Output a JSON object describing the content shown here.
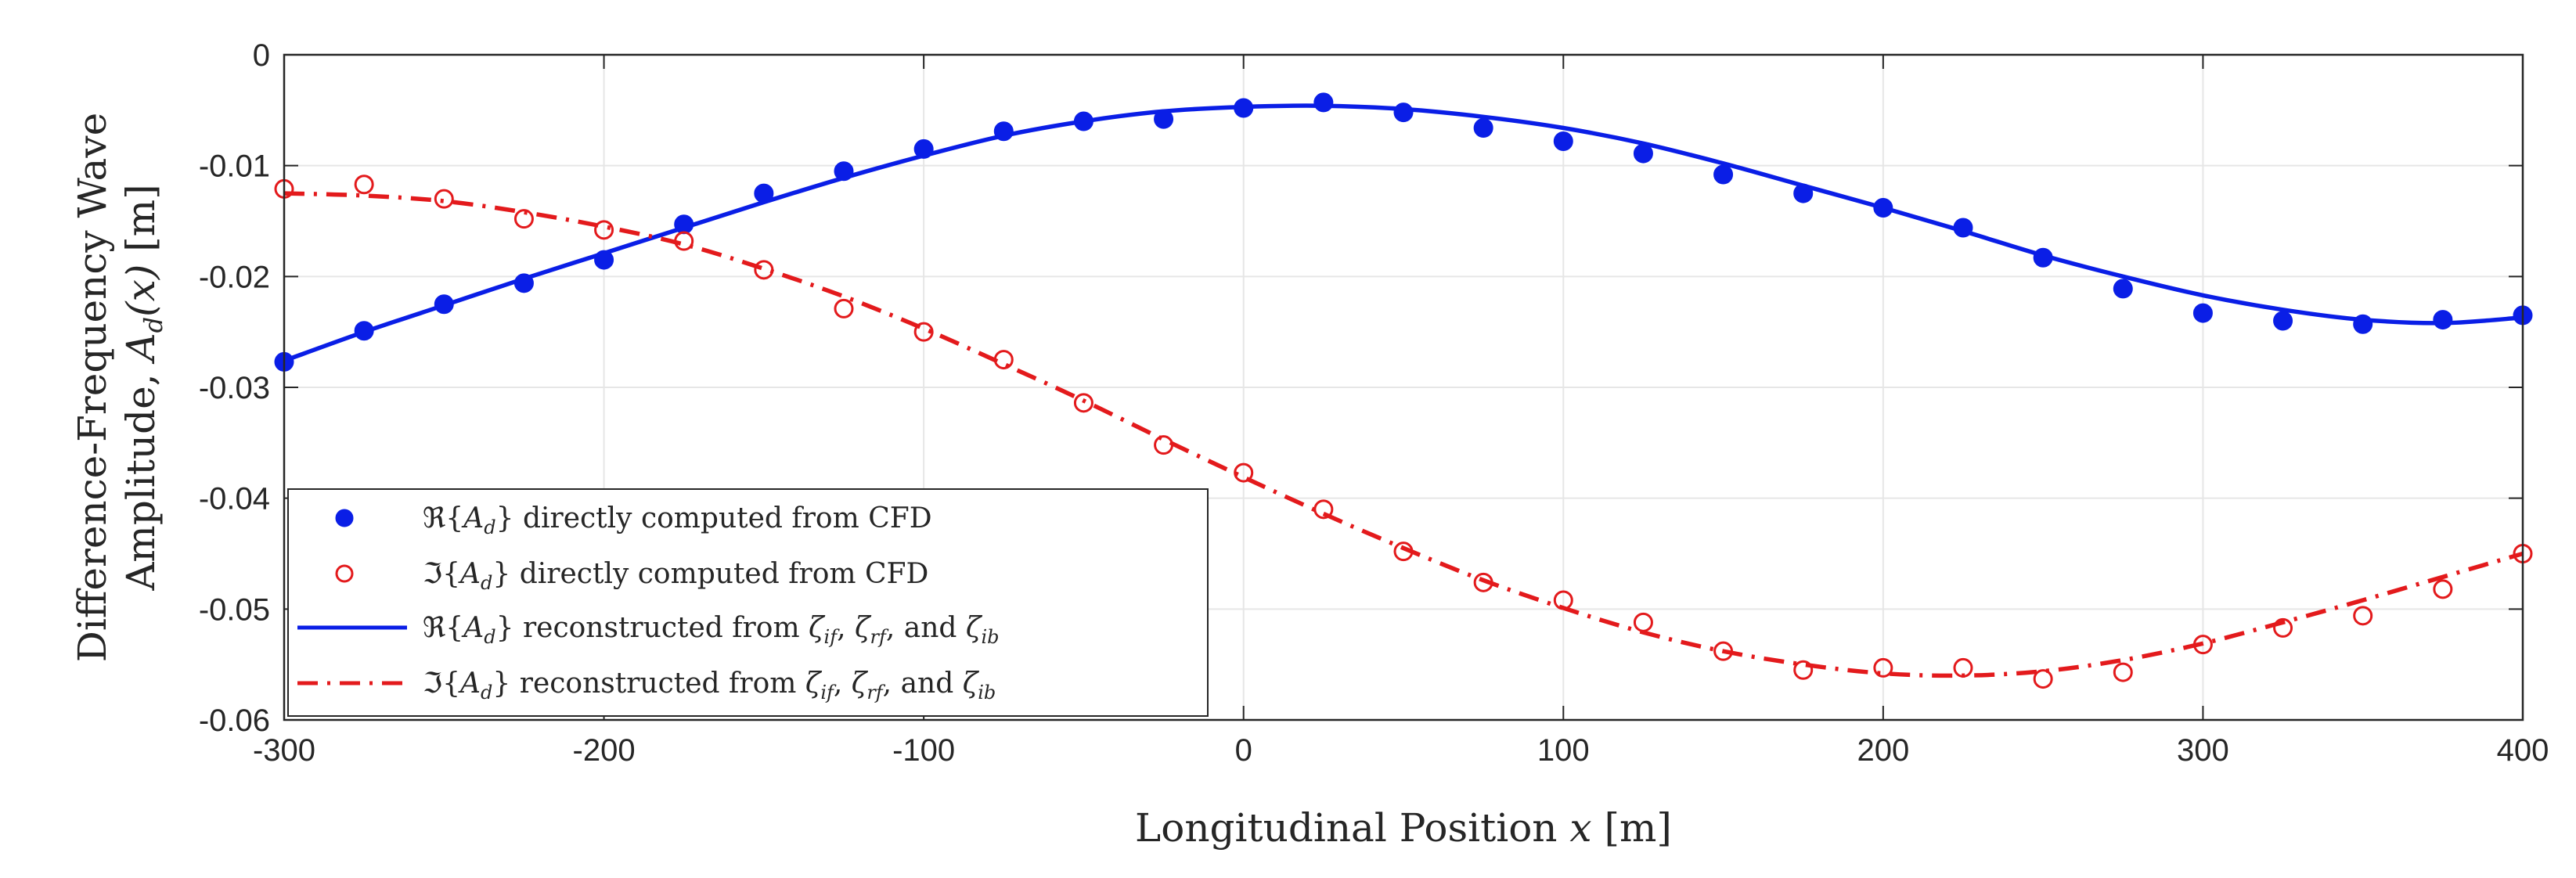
{
  "chart_data": {
    "type": "line",
    "xlabel": "Longitudinal Position x [m]",
    "ylabel_line1": "Difference-Frequency Wave",
    "ylabel_line2": "Amplitude, A_d(x) [m]",
    "xlim": [
      -300,
      400
    ],
    "ylim": [
      -0.06,
      0
    ],
    "xticks": [
      -300,
      -200,
      -100,
      0,
      100,
      200,
      300,
      400
    ],
    "xtick_labels": [
      "-300",
      "-200",
      "-100",
      "0",
      "100",
      "200",
      "300",
      "400"
    ],
    "yticks": [
      0,
      -0.01,
      -0.02,
      -0.03,
      -0.04,
      -0.05,
      -0.06
    ],
    "ytick_labels": [
      "0",
      "-0.01",
      "-0.02",
      "-0.03",
      "-0.04",
      "-0.05",
      "-0.06"
    ],
    "grid": true,
    "legend_position": "bottom-left",
    "x_points": [
      -300,
      -275,
      -250,
      -225,
      -200,
      -175,
      -150,
      -125,
      -100,
      -75,
      -50,
      -25,
      0,
      25,
      50,
      75,
      100,
      125,
      150,
      175,
      200,
      225,
      250,
      275,
      300,
      325,
      350,
      375,
      400
    ],
    "series": [
      {
        "name": "ℜ{A_d} directly computed from CFD",
        "style": "filled-markers",
        "color": "#0a1ee6",
        "values": [
          -0.0277,
          -0.0249,
          -0.0225,
          -0.0206,
          -0.0185,
          -0.0153,
          -0.0125,
          -0.0105,
          -0.0085,
          -0.0069,
          -0.006,
          -0.0058,
          -0.0048,
          -0.0043,
          -0.0052,
          -0.0066,
          -0.0078,
          -0.0089,
          -0.0108,
          -0.0125,
          -0.0138,
          -0.0156,
          -0.0183,
          -0.0211,
          -0.0233,
          -0.024,
          -0.0243,
          -0.0239,
          -0.0235
        ]
      },
      {
        "name": "ℑ{A_d} directly computed from CFD",
        "style": "open-markers",
        "color": "#e31a1c",
        "values": [
          -0.0121,
          -0.0117,
          -0.013,
          -0.0148,
          -0.0158,
          -0.0168,
          -0.0194,
          -0.0229,
          -0.025,
          -0.0275,
          -0.0314,
          -0.0352,
          -0.0377,
          -0.041,
          -0.0448,
          -0.0476,
          -0.0492,
          -0.0512,
          -0.0538,
          -0.0555,
          -0.0553,
          -0.0553,
          -0.0563,
          -0.0557,
          -0.0532,
          -0.0517,
          -0.0506,
          -0.0482,
          -0.045
        ]
      },
      {
        "name": "ℜ{A_d} reconstructed from ζ_if, ζ_rf, and ζ_ib",
        "style": "solid-line",
        "color": "#0a1ee6",
        "values": [
          -0.0276,
          -0.025,
          -0.0226,
          -0.0202,
          -0.0179,
          -0.0156,
          -0.0133,
          -0.0111,
          -0.0091,
          -0.0073,
          -0.006,
          -0.0051,
          -0.0047,
          -0.0046,
          -0.0049,
          -0.0056,
          -0.0066,
          -0.008,
          -0.0098,
          -0.0118,
          -0.0138,
          -0.0159,
          -0.0181,
          -0.02,
          -0.0217,
          -0.023,
          -0.0239,
          -0.0242,
          -0.0237
        ]
      },
      {
        "name": "ℑ{A_d} reconstructed from ζ_if, ζ_rf, and ζ_ib",
        "style": "dashed-line",
        "color": "#e31a1c",
        "values": [
          -0.0125,
          -0.0127,
          -0.0132,
          -0.0142,
          -0.0155,
          -0.0171,
          -0.0193,
          -0.0218,
          -0.0247,
          -0.0279,
          -0.0312,
          -0.0347,
          -0.0381,
          -0.0414,
          -0.0445,
          -0.0474,
          -0.0499,
          -0.0521,
          -0.0538,
          -0.055,
          -0.0558,
          -0.056,
          -0.0556,
          -0.0546,
          -0.0531,
          -0.0512,
          -0.0492,
          -0.0471,
          -0.045
        ]
      }
    ],
    "legend": [
      {
        "pre": "ℜ{",
        "sym": "A",
        "sub": "d",
        "post": "} directly computed from CFD"
      },
      {
        "pre": "ℑ{",
        "sym": "A",
        "sub": "d",
        "post": "} directly computed from CFD"
      },
      {
        "pre": "ℜ{",
        "sym": "A",
        "sub": "d",
        "post": "} reconstructed from",
        "zeta1": "ζ",
        "zeta1_sub": "if",
        "zeta2": "ζ",
        "zeta2_sub": "rf",
        "and_text": "and",
        "zeta3": "ζ",
        "zeta3_sub": "ib"
      },
      {
        "pre": "ℑ{",
        "sym": "A",
        "sub": "d",
        "post": "} reconstructed from",
        "zeta1": "ζ",
        "zeta1_sub": "if",
        "zeta2": "ζ",
        "zeta2_sub": "rf",
        "and_text": "and",
        "zeta3": "ζ",
        "zeta3_sub": "ib"
      }
    ],
    "axis_text": {
      "xlabel_main": "Longitudinal Position",
      "xlabel_var": "x",
      "xlabel_unit": "[m]",
      "ylabel_line1": "Difference-Frequency Wave",
      "ylabel_line2_main": "Amplitude,",
      "ylabel_line2_sym": "A",
      "ylabel_line2_sub": "d",
      "ylabel_line2_arg": "(x)",
      "ylabel_line2_unit": "[m]"
    }
  }
}
